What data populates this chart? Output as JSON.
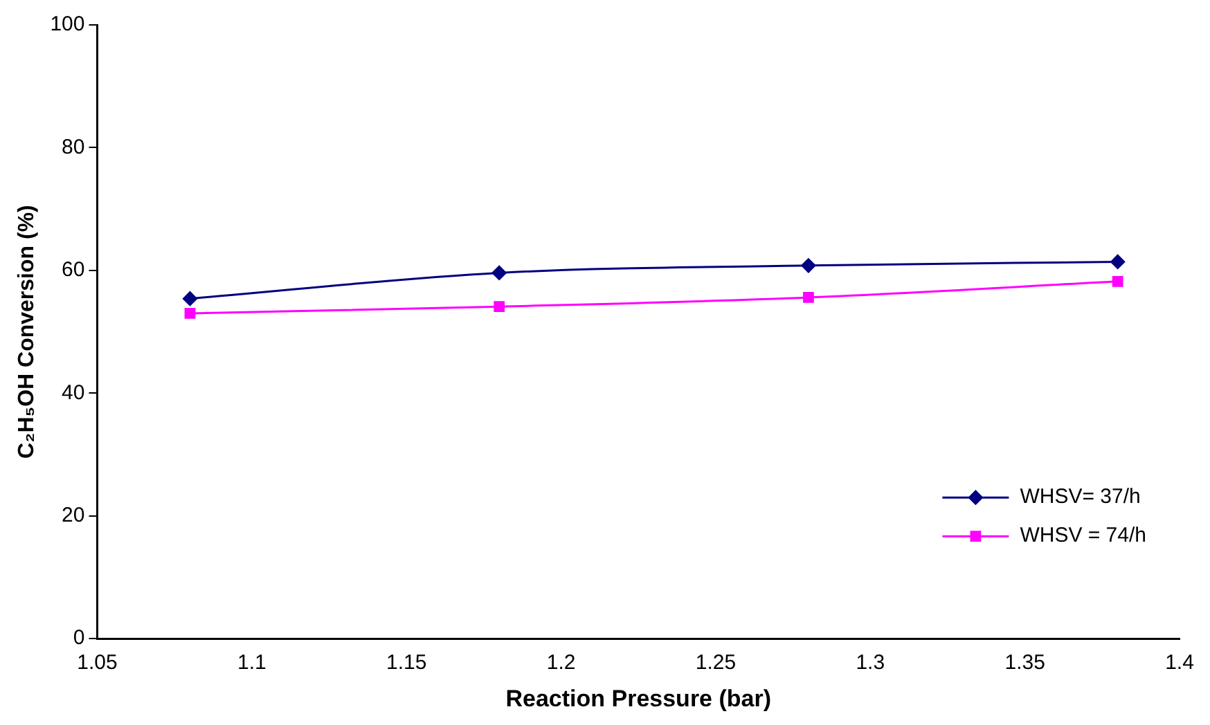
{
  "chart_data": {
    "type": "line",
    "xlabel": "Reaction Pressure (bar)",
    "ylabel": "C₂H₅OH Conversion (%)",
    "x": [
      1.08,
      1.18,
      1.28,
      1.38
    ],
    "series": [
      {
        "name": "WHSV= 37/h",
        "color": "#000080",
        "marker": "diamond",
        "values": [
          55.4,
          59.6,
          60.8,
          61.4
        ]
      },
      {
        "name": "WHSV = 74/h",
        "color": "#ff00ff",
        "marker": "square",
        "values": [
          53.0,
          54.1,
          55.6,
          58.2
        ]
      }
    ],
    "xlim": [
      1.05,
      1.4
    ],
    "xticks": [
      1.05,
      1.1,
      1.15,
      1.2,
      1.25,
      1.3,
      1.35,
      1.4
    ],
    "ylim": [
      0,
      100
    ],
    "yticks": [
      0,
      20,
      40,
      60,
      80,
      100
    ],
    "grid": false,
    "legend": "bottom right"
  }
}
